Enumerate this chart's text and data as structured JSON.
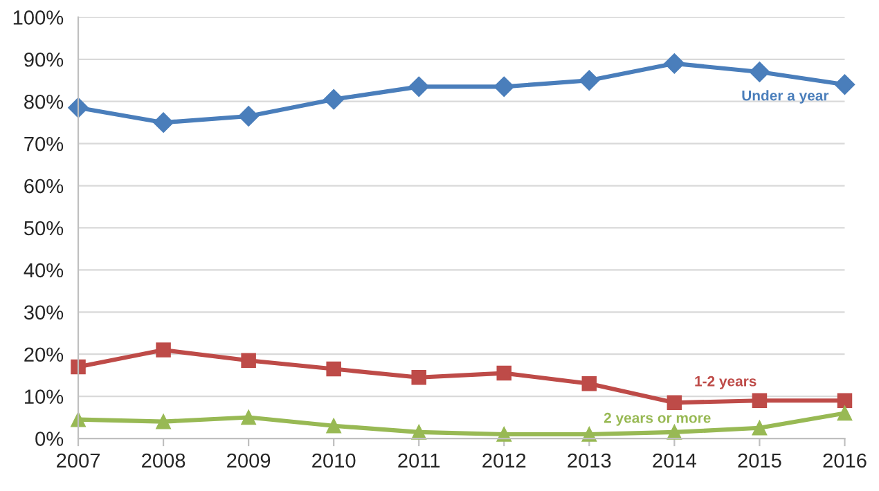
{
  "chart_data": {
    "type": "line",
    "x": [
      2007,
      2008,
      2009,
      2010,
      2011,
      2012,
      2013,
      2014,
      2015,
      2016
    ],
    "series": [
      {
        "name": "Under a year",
        "color": "#4a7ebb",
        "marker": "diamond",
        "values": [
          78.5,
          75,
          76.5,
          80.5,
          83.5,
          83.5,
          85,
          89,
          87,
          84
        ]
      },
      {
        "name": "1-2 years",
        "color": "#be4b48",
        "marker": "square",
        "values": [
          17,
          21,
          18.5,
          16.5,
          14.5,
          15.5,
          13,
          8.5,
          9,
          9
        ]
      },
      {
        "name": "2 years or more",
        "color": "#98b954",
        "marker": "triangle",
        "values": [
          4.5,
          4,
          5,
          3,
          1.5,
          1,
          1,
          1.5,
          2.5,
          6
        ]
      }
    ],
    "xlim": [
      2007,
      2016
    ],
    "xticks": [
      2007,
      2008,
      2009,
      2010,
      2011,
      2012,
      2013,
      2014,
      2015,
      2016
    ],
    "ylim": [
      0,
      100
    ],
    "yticks": [
      {
        "value": 0,
        "label": "0%"
      },
      {
        "value": 10,
        "label": "10%"
      },
      {
        "value": 20,
        "label": "20%"
      },
      {
        "value": 30,
        "label": "30%"
      },
      {
        "value": 40,
        "label": "40%"
      },
      {
        "value": 50,
        "label": "50%"
      },
      {
        "value": 60,
        "label": "60%"
      },
      {
        "value": 70,
        "label": "70%"
      },
      {
        "value": 80,
        "label": "80%"
      },
      {
        "value": 90,
        "label": "90%"
      },
      {
        "value": 100,
        "label": "100%"
      }
    ],
    "grid": "y",
    "legend": false,
    "line_style": "solid"
  }
}
